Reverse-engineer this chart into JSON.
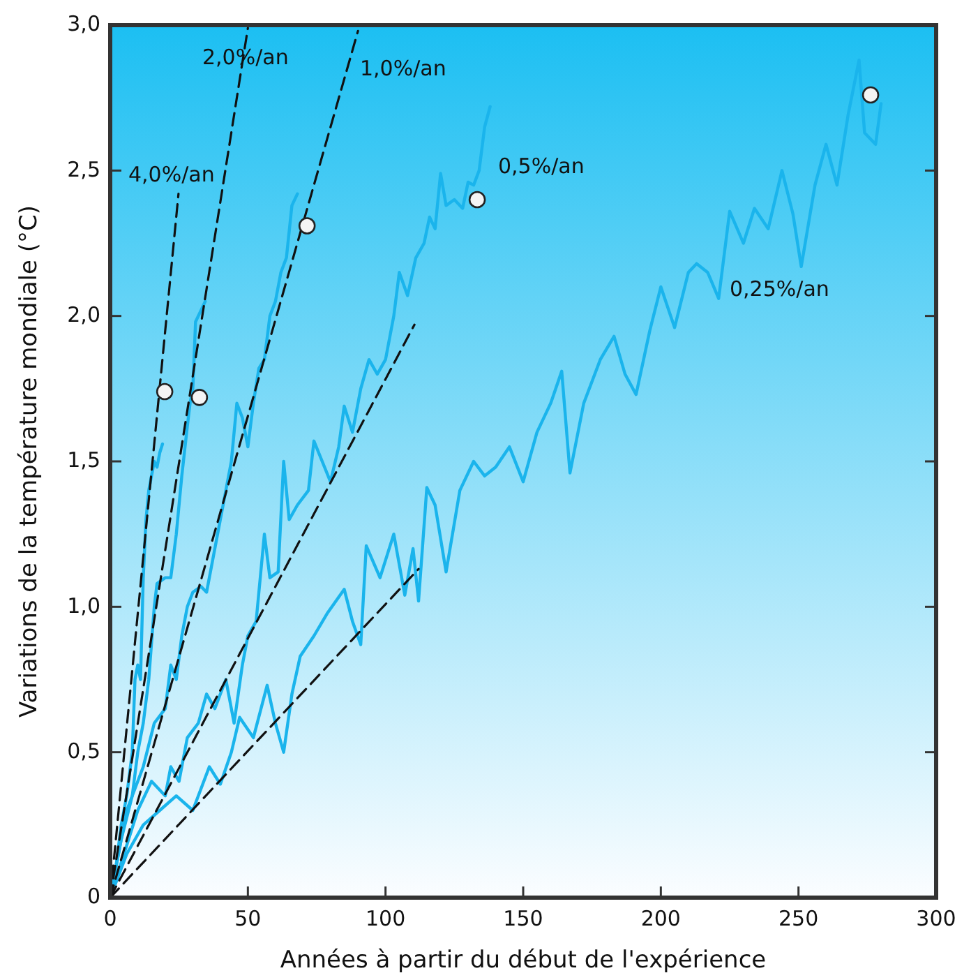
{
  "chart_data": {
    "type": "line",
    "xlabel": "Années à partir du début de l'expérience",
    "ylabel": "Variations de la température mondiale (°C)",
    "xlim": [
      0,
      300
    ],
    "xticks": [
      0,
      50,
      100,
      150,
      200,
      250,
      300
    ],
    "ylim": [
      0,
      3
    ],
    "yticks": [
      0,
      {
        "value": 0.5,
        "label": "0,5"
      },
      {
        "value": 1,
        "label": "1,0"
      },
      {
        "value": 1.5,
        "label": "1,5"
      },
      {
        "value": 2,
        "label": "2,0"
      },
      {
        "value": 2.5,
        "label": "2,5"
      },
      {
        "value": 3,
        "label": "3,0"
      }
    ],
    "grid": false,
    "marker": "none",
    "line_style": "solid",
    "series": [
      {
        "color": "#1ab4ec",
        "x": [
          0,
          2,
          4,
          6,
          8,
          9,
          10,
          11,
          12,
          13,
          14,
          15,
          16,
          17,
          18,
          19
        ],
        "values": [
          0,
          0.1,
          0.25,
          0.35,
          0.5,
          0.75,
          0.8,
          0.75,
          1.1,
          1.3,
          1.4,
          1.45,
          1.5,
          1.48,
          1.53,
          1.56
        ]
      },
      {
        "color": "#1ab4ec",
        "x": [
          0,
          3,
          6,
          8,
          10,
          12,
          14,
          16,
          17,
          20,
          22,
          24,
          26,
          28,
          29,
          30,
          31,
          33,
          34.5
        ],
        "values": [
          0,
          0.15,
          0.3,
          0.35,
          0.5,
          0.6,
          0.75,
          1.0,
          1.08,
          1.1,
          1.1,
          1.25,
          1.45,
          1.62,
          1.7,
          1.75,
          1.98,
          2.02,
          2.05
        ]
      },
      {
        "color": "#1ab4ec",
        "x": [
          0,
          4,
          8,
          12,
          16,
          20,
          22,
          24,
          26,
          28,
          30,
          33,
          35,
          37,
          40,
          42,
          44,
          46,
          48,
          50,
          52,
          54,
          56,
          58,
          60,
          62,
          64,
          66,
          68
        ],
        "values": [
          0,
          0.2,
          0.35,
          0.45,
          0.6,
          0.65,
          0.8,
          0.75,
          0.9,
          1.0,
          1.05,
          1.07,
          1.05,
          1.15,
          1.3,
          1.4,
          1.5,
          1.7,
          1.65,
          1.55,
          1.7,
          1.82,
          1.85,
          2.0,
          2.05,
          2.15,
          2.2,
          2.38,
          2.42
        ]
      },
      {
        "color": "#1ab4ec",
        "x": [
          0,
          5,
          10,
          15,
          20,
          22,
          25,
          28,
          32,
          35,
          38,
          42,
          45,
          48,
          50,
          53,
          56,
          58,
          61,
          63,
          65,
          68,
          72,
          74,
          77,
          80,
          83,
          85,
          88,
          91,
          94,
          97,
          100,
          103,
          105,
          108,
          111,
          114,
          116,
          118,
          120,
          122,
          125,
          128,
          130,
          132,
          134,
          136,
          138
        ],
        "values": [
          0,
          0.15,
          0.3,
          0.4,
          0.35,
          0.45,
          0.4,
          0.55,
          0.6,
          0.7,
          0.65,
          0.75,
          0.6,
          0.8,
          0.9,
          0.95,
          1.25,
          1.1,
          1.12,
          1.5,
          1.3,
          1.35,
          1.4,
          1.57,
          1.5,
          1.43,
          1.55,
          1.69,
          1.6,
          1.75,
          1.85,
          1.8,
          1.85,
          2.0,
          2.15,
          2.07,
          2.2,
          2.25,
          2.34,
          2.3,
          2.49,
          2.38,
          2.4,
          2.37,
          2.46,
          2.45,
          2.5,
          2.65,
          2.72
        ]
      },
      {
        "color": "#1ab4ec",
        "x": [
          0,
          6,
          12,
          18,
          24,
          30,
          36,
          40,
          44,
          47,
          52,
          57,
          60,
          63,
          66,
          69,
          74,
          79,
          85,
          88,
          91,
          93,
          98,
          103,
          107,
          110,
          112,
          115,
          118,
          122,
          127,
          132,
          136,
          140,
          145,
          150,
          155,
          160,
          164,
          167,
          172,
          178,
          183,
          187,
          191,
          196,
          200,
          205,
          210,
          213,
          217,
          221,
          225,
          230,
          234,
          239,
          244,
          248,
          251,
          256,
          260,
          264,
          268,
          272,
          274,
          278,
          280
        ],
        "values": [
          0,
          0.15,
          0.25,
          0.3,
          0.35,
          0.3,
          0.45,
          0.39,
          0.5,
          0.62,
          0.55,
          0.73,
          0.6,
          0.5,
          0.7,
          0.83,
          0.9,
          0.98,
          1.06,
          0.95,
          0.87,
          1.21,
          1.1,
          1.25,
          1.04,
          1.2,
          1.02,
          1.41,
          1.35,
          1.12,
          1.4,
          1.5,
          1.45,
          1.48,
          1.55,
          1.43,
          1.6,
          1.7,
          1.81,
          1.46,
          1.7,
          1.85,
          1.93,
          1.8,
          1.73,
          1.95,
          2.1,
          1.96,
          2.15,
          2.18,
          2.15,
          2.06,
          2.36,
          2.25,
          2.37,
          2.3,
          2.5,
          2.35,
          2.17,
          2.45,
          2.59,
          2.45,
          2.69,
          2.88,
          2.63,
          2.59,
          2.73
        ]
      },
      {
        "color": "#111111",
        "line_style": "dashed",
        "x": [
          0,
          24.8
        ],
        "values": [
          0,
          2.42
        ]
      },
      {
        "color": "#111111",
        "line_style": "dashed",
        "x": [
          0,
          50
        ],
        "values": [
          0,
          2.99
        ]
      },
      {
        "color": "#111111",
        "line_style": "dashed",
        "x": [
          0,
          90
        ],
        "values": [
          0,
          2.98
        ]
      },
      {
        "color": "#111111",
        "line_style": "dashed",
        "x": [
          0,
          110.5
        ],
        "values": [
          0,
          1.97
        ]
      },
      {
        "color": "#111111",
        "line_style": "dashed",
        "x": [
          0,
          112
        ],
        "values": [
          0,
          1.13
        ]
      },
      {
        "type": "scatter",
        "marker": "circle",
        "color": "#f4f4f4",
        "x": [
          19.8,
          32.4,
          71.5,
          133.3,
          276.2
        ],
        "values": [
          1.74,
          1.72,
          2.31,
          2.4,
          2.76
        ]
      }
    ],
    "annotations": [
      "4,0%/an",
      "2,0%/an",
      "1,0%/an",
      "0,5%/an",
      "0,25%/an"
    ]
  }
}
